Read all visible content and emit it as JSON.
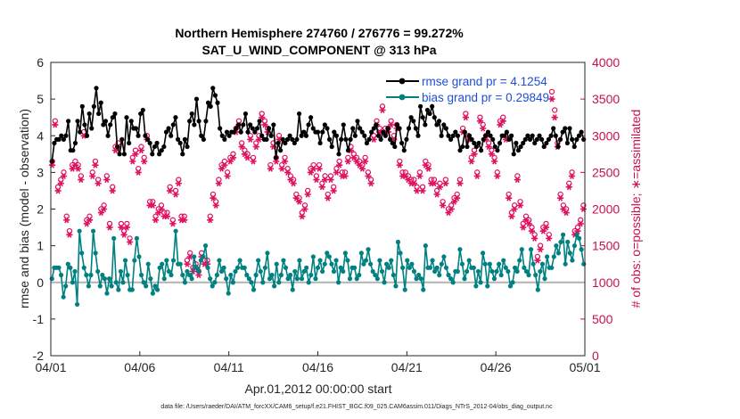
{
  "chart_data": {
    "type": "line",
    "title_line1": "Northern Hemisphere 274760 / 276776 = 99.272%",
    "title_line2": "SAT_U_WIND_COMPONENT @ 313 hPa",
    "xlabel": "Apr.01,2012 00:00:00 start",
    "ylabel_left": "rmse and bias (model - observation)",
    "ylabel_right": "# of obs: o=possible; ∗=assimilated",
    "x_ticks": [
      "04/01",
      "04/06",
      "04/11",
      "04/16",
      "04/21",
      "04/26",
      "05/01"
    ],
    "x_range_days": [
      0,
      30
    ],
    "ylim_left": [
      -2,
      6
    ],
    "yticks_left": [
      "-2",
      "-1",
      "0",
      "1",
      "2",
      "3",
      "4",
      "5",
      "6"
    ],
    "ylim_right": [
      0,
      4000
    ],
    "yticks_right": [
      "0",
      "500",
      "1000",
      "1500",
      "2000",
      "2500",
      "3000",
      "3500",
      "4000"
    ],
    "footnote": "data file: /Users/raeder/DAI/ATM_forcXX/CAM6_setup/f.e21.FHIST_BGC.f09_025.CAM6assim.011/Diags_NTrS_2012-04/obs_diag_output.nc",
    "colors": {
      "rmse": "#000000",
      "bias": "#008080",
      "obs": "#e0115f",
      "zero_line": "#b3b3b3"
    },
    "series": [
      {
        "name": "rmse grand pr = 4.1254",
        "values": [
          3.3,
          3.8,
          3.9,
          3.9,
          4.0,
          3.9,
          4.0,
          4.4,
          3.6,
          3.6,
          3.8,
          4.4,
          4.1,
          4.8,
          4.3,
          4.0,
          4.6,
          4.2,
          4.8,
          5.3,
          4.6,
          4.9,
          4.3,
          4.4,
          4.0,
          4.3,
          4.5,
          4.6,
          3.7,
          3.5,
          3.9,
          3.5,
          4.5,
          3.8,
          4.4,
          4.2,
          4.2,
          4.0,
          4.6,
          4.7,
          4.0,
          3.9,
          3.8,
          3.5,
          3.7,
          3.8,
          3.5,
          3.6,
          3.7,
          4.1,
          4.2,
          4.0,
          4.3,
          4.5,
          3.9,
          3.8,
          3.5,
          3.9,
          3.7,
          4.4,
          4.6,
          4.3,
          5.0,
          4.4,
          4.0,
          3.9,
          4.4,
          4.9,
          4.8,
          5.3,
          5.1,
          4.9,
          4.2,
          4.0,
          3.9,
          4.1,
          4.0,
          4.1,
          4.1,
          4.2,
          4.3,
          4.1,
          4.3,
          4.6,
          4.1,
          4.3,
          4.2,
          4.1,
          4.2,
          4.4,
          4.0,
          3.9,
          3.9,
          4.2,
          4.0,
          4.3,
          3.4,
          3.8,
          3.6,
          3.9,
          3.8,
          3.9,
          4.0,
          3.9,
          3.8,
          3.9,
          4.6,
          4.0,
          4.1,
          4.0,
          4.3,
          4.5,
          4.2,
          4.1,
          4.1,
          3.8,
          4.1,
          4.3,
          4.2,
          3.9,
          3.7,
          4.1,
          4.0,
          3.5,
          3.9,
          4.3,
          3.9,
          3.6,
          3.9,
          4.2,
          4.0,
          4.4,
          4.2,
          4.1,
          4.0,
          3.8,
          3.9,
          4.1,
          4.2,
          4.3,
          4.0,
          3.9,
          4.1,
          4.0,
          4.2,
          3.9,
          3.8,
          3.7,
          4.3,
          4.2,
          3.8,
          3.6,
          3.9,
          4.2,
          4.5,
          4.4,
          4.2,
          4.0,
          4.8,
          4.5,
          4.3,
          4.7,
          4.6,
          4.8,
          4.5,
          4.3,
          4.4,
          4.0,
          4.3,
          4.2,
          4.0,
          3.9,
          4.0,
          4.1,
          4.0,
          3.6,
          3.7,
          4.1,
          3.7,
          4.0,
          3.9,
          3.8,
          3.7,
          3.8,
          3.6,
          3.9,
          4.0,
          4.1,
          4.0,
          3.9,
          3.7,
          3.6,
          3.8,
          4.0,
          4.0,
          4.1,
          3.9,
          4.0,
          3.5,
          3.8,
          3.6,
          3.7,
          3.8,
          3.9,
          4.0,
          3.9,
          4.0,
          3.8,
          3.9,
          4.0,
          3.9,
          3.7,
          3.8,
          3.9,
          4.0,
          4.2,
          4.0,
          3.7,
          3.9,
          4.1,
          4.2,
          3.8,
          4.2,
          3.9,
          3.7,
          3.9,
          4.0,
          4.1,
          3.9
        ]
      },
      {
        "name": "bias grand pr = 0.29849",
        "values": [
          0.1,
          0.4,
          0.4,
          0.4,
          0.2,
          -0.4,
          -0.1,
          0.5,
          0.4,
          0.0,
          0.3,
          -0.6,
          1.4,
          0.8,
          0.4,
          0.2,
          -0.1,
          0.2,
          1.4,
          0.8,
          0.3,
          -0.1,
          0.2,
          0.1,
          -0.3,
          0.1,
          -0.1,
          1.2,
          0.0,
          -0.2,
          0.3,
          0.0,
          0.6,
          0.2,
          -0.2,
          -0.2,
          0.6,
          1.2,
          0.7,
          0.2,
          0.0,
          -0.1,
          0.5,
          0.1,
          -0.3,
          -0.1,
          -0.2,
          0.4,
          0.5,
          0.1,
          0.6,
          0.3,
          0.2,
          0.6,
          1.4,
          0.5,
          0.5,
          0.2,
          0.0,
          0.3,
          0.2,
          0.1,
          0.7,
          0.4,
          0.3,
          0.6,
          0.7,
          1.0,
          0.4,
          0.1,
          -0.1,
          0.0,
          0.2,
          0.6,
          0.3,
          0.4,
          0.1,
          -0.3,
          0.2,
          0.0,
          0.3,
          0.4,
          0.6,
          0.4,
          0.4,
          0.2,
          0.1,
          0.0,
          -0.2,
          0.2,
          0.6,
          0.3,
          0.0,
          0.4,
          0.8,
          0.1,
          0.2,
          -0.1,
          0.5,
          0.0,
          0.2,
          0.6,
          0.4,
          0.1,
          0.2,
          -0.2,
          0.3,
          0.1,
          0.6,
          0.1,
          0.3,
          0.4,
          0.0,
          0.2,
          0.7,
          0.1,
          0.4,
          0.6,
          0.3,
          0.5,
          0.8,
          0.7,
          0.5,
          0.3,
          0.6,
          0.0,
          0.4,
          0.3,
          0.8,
          0.6,
          0.1,
          0.4,
          0.4,
          0.1,
          0.2,
          0.8,
          0.5,
          0.6,
          0.9,
          0.5,
          0.3,
          0.2,
          0.1,
          0.6,
          0.3,
          0.0,
          0.5,
          0.4,
          0.6,
          0.2,
          -0.1,
          1.1,
          0.8,
          0.4,
          -0.2,
          0.6,
          0.4,
          0.5,
          0.3,
          0.1,
          0.2,
          0.1,
          -0.2,
          1.0,
          0.4,
          0.4,
          0.6,
          0.3,
          0.4,
          0.2,
          0.5,
          0.7,
          0.4,
          0.2,
          0.1,
          0.0,
          0.3,
          0.3,
          0.9,
          0.5,
          0.1,
          0.3,
          0.6,
          0.4,
          0.4,
          -0.1,
          0.3,
          0.0,
          0.8,
          0.5,
          -0.1,
          0.5,
          0.3,
          0.1,
          0.3,
          0.5,
          0.2,
          0.6,
          0.4,
          0.3,
          -0.1,
          0.0,
          0.4,
          0.3,
          0.6,
          0.9,
          0.4,
          0.3,
          0.2,
          0.9,
          0.5,
          0.2,
          -0.2,
          0.3,
          0.5,
          0.1,
          0.7,
          0.4,
          0.4,
          0.7,
          1.0,
          0.8,
          1.1,
          1.3,
          0.5,
          1.1,
          0.8,
          0.6,
          1.0,
          1.3,
          1.2,
          0.9,
          0.5
        ]
      }
    ],
    "obs_possible": [
      2650,
      3200,
      2300,
      2400,
      2500,
      1900,
      1700,
      2600,
      2650,
      2600,
      2450,
      3050,
      1850,
      1900,
      2500,
      2650,
      2400,
      2000,
      2050,
      2450,
      1800,
      2300,
      2850,
      2900,
      1800,
      1700,
      1800,
      1600,
      2700,
      2800,
      2550,
      2850,
      2700,
      3000,
      2100,
      2100,
      1900,
      2000,
      2050,
      1950,
      1950,
      2300,
      1850,
      2250,
      2400,
      1900,
      1900,
      1300,
      1400,
      1200,
      1250,
      1150,
      1400,
      1300,
      1300,
      1900,
      2200,
      2100,
      2400,
      2600,
      2650,
      2500,
      2700,
      2750,
      3100,
      3200,
      2900,
      2800,
      2750,
      3000,
      2700,
      2900,
      3000,
      3300,
      3200,
      3100,
      2600,
      2900,
      2700,
      3000,
      2600,
      2700,
      2550,
      2450,
      2400,
      2200,
      2150,
      1950,
      2050,
      2250,
      2550,
      2600,
      2450,
      2600,
      2350,
      2450,
      2200,
      2450,
      2300,
      2550,
      2650,
      2500,
      2500,
      2700,
      2850,
      2750,
      2700,
      2650,
      2600,
      2700,
      2500,
      2400,
      3000,
      3200,
      3100,
      3400,
      3100,
      3100,
      3200,
      3000,
      3150,
      2650,
      2500,
      2500,
      2450,
      2400,
      2400,
      2300,
      2500,
      2300,
      2650,
      2600,
      2400,
      2400,
      2250,
      2350,
      2100,
      2400,
      2000,
      2050,
      2150,
      2200,
      2400,
      3100,
      3300,
      3000,
      2700,
      2800,
      2500,
      3250,
      3150,
      3000,
      2900,
      2800,
      2700,
      2500,
      3200,
      3250,
      3000,
      2200,
      1950,
      2050,
      2450,
      2100,
      1800,
      1900,
      1850,
      1750,
      1650,
      1350,
      1500,
      1750,
      1800,
      1650,
      3600,
      3350,
      2900,
      2200,
      2050,
      2000,
      2350,
      2500,
      1700,
      1750,
      1850,
      2050
    ],
    "obs_assimilated": [
      2600,
      3150,
      2250,
      2350,
      2450,
      1850,
      1650,
      2550,
      2600,
      2550,
      2400,
      3000,
      1800,
      1850,
      2450,
      2600,
      2350,
      1950,
      2000,
      2400,
      1750,
      2250,
      2800,
      2850,
      1750,
      1650,
      1750,
      1550,
      2650,
      2750,
      2500,
      2800,
      2650,
      2950,
      2050,
      2050,
      1850,
      1950,
      2000,
      1900,
      1900,
      2250,
      1800,
      2200,
      2350,
      1850,
      1850,
      1250,
      1350,
      1150,
      1200,
      1100,
      1350,
      1250,
      1250,
      1850,
      2150,
      2050,
      2350,
      2550,
      2600,
      2450,
      2650,
      2700,
      3050,
      3150,
      2850,
      2750,
      2700,
      2950,
      2650,
      2850,
      2950,
      3250,
      3150,
      3050,
      2550,
      2850,
      2650,
      2950,
      2550,
      2650,
      2500,
      2400,
      2350,
      2150,
      2100,
      1900,
      2000,
      2200,
      2500,
      2550,
      2400,
      2550,
      2300,
      2400,
      2150,
      2400,
      2250,
      2500,
      2600,
      2450,
      2450,
      2650,
      2800,
      2700,
      2650,
      2600,
      2550,
      2650,
      2450,
      2350,
      2950,
      3150,
      3050,
      3350,
      3050,
      3050,
      3150,
      2950,
      3100,
      2600,
      2450,
      2450,
      2400,
      2350,
      2350,
      2250,
      2450,
      2250,
      2600,
      2550,
      2350,
      2350,
      2200,
      2300,
      2050,
      2350,
      1950,
      2000,
      2100,
      2150,
      2350,
      3050,
      3250,
      2950,
      2650,
      2750,
      2450,
      3200,
      3100,
      2950,
      2850,
      2750,
      2650,
      2450,
      3150,
      3200,
      2950,
      2150,
      1900,
      2000,
      2400,
      2050,
      1750,
      1850,
      1800,
      1700,
      1600,
      1300,
      1450,
      1700,
      1750,
      1600,
      3500,
      3250,
      2850,
      2150,
      2000,
      1950,
      2300,
      2450,
      1650,
      1700,
      1800,
      2000
    ]
  }
}
